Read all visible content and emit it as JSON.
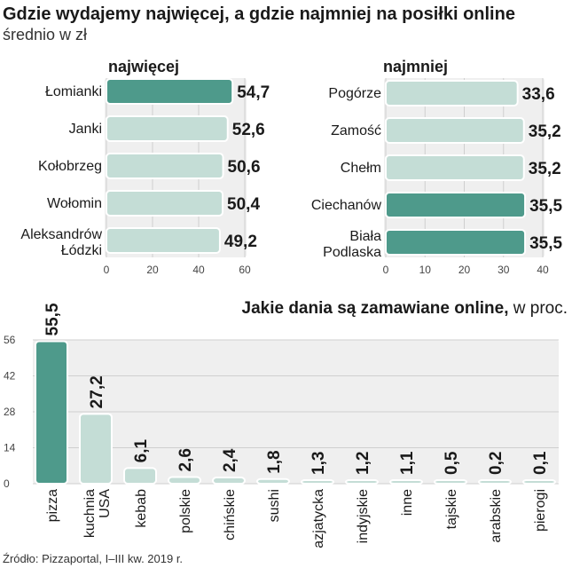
{
  "title": "Gdzie wydajemy najwięcej, a gdzie najmniej na posiłki online",
  "subtitle": "średnio w zł",
  "source": "Źródło: Pizzaportal, I–III kw. 2019 r.",
  "colors": {
    "highlight": "#4e9a8b",
    "normal": "#c4ddd6",
    "panel": "#efefef",
    "grid": "#cfcfcf"
  },
  "chart_data": [
    {
      "type": "bar",
      "orientation": "horizontal",
      "title": "najwięcej",
      "categories": [
        "Łomianki",
        "Janki",
        "Kołobrzeg",
        "Wołomin",
        "Aleksandrów Łódzki"
      ],
      "values": [
        54.7,
        52.6,
        50.6,
        50.4,
        49.2
      ],
      "value_labels": [
        "54,7",
        "52,6",
        "50,6",
        "50,4",
        "49,2"
      ],
      "highlighted": [
        true,
        false,
        false,
        false,
        false
      ],
      "xlim": [
        0,
        60
      ],
      "xticks": [
        0,
        20,
        40,
        60
      ]
    },
    {
      "type": "bar",
      "orientation": "horizontal",
      "title": "najmniej",
      "categories": [
        "Pogórze",
        "Zamość",
        "Chełm",
        "Ciechanów",
        "Biała Podlaska"
      ],
      "values": [
        33.6,
        35.2,
        35.2,
        35.5,
        35.5
      ],
      "value_labels": [
        "33,6",
        "35,2",
        "35,2",
        "35,5",
        "35,5"
      ],
      "highlighted": [
        false,
        false,
        false,
        true,
        true
      ],
      "xlim": [
        0,
        40
      ],
      "xticks": [
        0,
        10,
        20,
        30,
        40
      ]
    },
    {
      "type": "bar",
      "orientation": "vertical",
      "title": "Jakie dania są zamawiane online,",
      "title_suffix": " w proc.",
      "categories": [
        "pizza",
        "kuchnia USA",
        "kebab",
        "polskie",
        "chińskie",
        "sushi",
        "azjatycka",
        "indyjskie",
        "inne",
        "tajskie",
        "arabskie",
        "pierogi"
      ],
      "values": [
        55.5,
        27.2,
        6.1,
        2.6,
        2.4,
        1.8,
        1.3,
        1.2,
        1.1,
        0.5,
        0.2,
        0.1
      ],
      "value_labels": [
        "55,5",
        "27,2",
        "6,1",
        "2,6",
        "2,4",
        "1,8",
        "1,3",
        "1,2",
        "1,1",
        "0,5",
        "0,2",
        "0,1"
      ],
      "highlighted": [
        true,
        false,
        false,
        false,
        false,
        false,
        false,
        false,
        false,
        false,
        false,
        false
      ],
      "ylim": [
        0,
        56
      ],
      "yticks": [
        0,
        14,
        28,
        42,
        56
      ]
    }
  ]
}
